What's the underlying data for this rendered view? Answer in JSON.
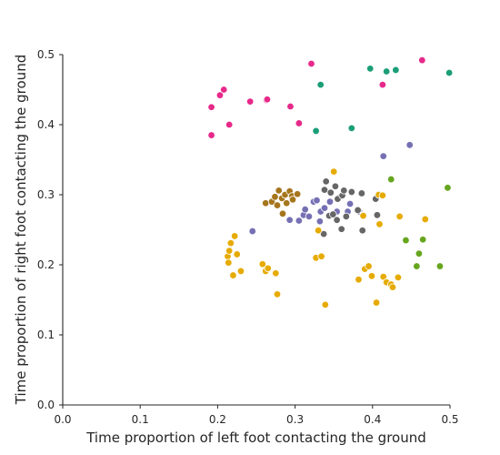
{
  "chart_data": {
    "type": "scatter",
    "title": "",
    "xlabel": "Time proportion of left foot contacting the ground",
    "ylabel": "Time proportion of right foot contacting the ground",
    "xlim": [
      0.0,
      0.5
    ],
    "ylim": [
      0.0,
      0.5
    ],
    "xticks": [
      0.0,
      0.1,
      0.2,
      0.3,
      0.4,
      0.5
    ],
    "yticks": [
      0.0,
      0.1,
      0.2,
      0.3,
      0.4,
      0.5
    ],
    "xtick_labels": [
      "0.0",
      "0.1",
      "0.2",
      "0.3",
      "0.4",
      "0.5"
    ],
    "ytick_labels": [
      "0.0",
      "0.1",
      "0.2",
      "0.3",
      "0.4",
      "0.5"
    ],
    "grid": false,
    "legend": "none",
    "series": [
      {
        "color": "#e7298a",
        "points": [
          [
            0.192,
            0.425
          ],
          [
            0.192,
            0.385
          ],
          [
            0.203,
            0.442
          ],
          [
            0.208,
            0.45
          ],
          [
            0.215,
            0.4
          ],
          [
            0.242,
            0.433
          ],
          [
            0.263,
            0.435
          ],
          [
            0.264,
            0.436
          ],
          [
            0.294,
            0.426
          ],
          [
            0.305,
            0.402
          ],
          [
            0.321,
            0.487
          ],
          [
            0.413,
            0.457
          ],
          [
            0.464,
            0.492
          ]
        ]
      },
      {
        "color": "#1b9e77",
        "points": [
          [
            0.327,
            0.391
          ],
          [
            0.333,
            0.457
          ],
          [
            0.373,
            0.395
          ],
          [
            0.397,
            0.48
          ],
          [
            0.418,
            0.476
          ],
          [
            0.43,
            0.478
          ],
          [
            0.499,
            0.474
          ]
        ]
      },
      {
        "color": "#66a61e",
        "points": [
          [
            0.424,
            0.322
          ],
          [
            0.443,
            0.235
          ],
          [
            0.457,
            0.198
          ],
          [
            0.46,
            0.216
          ],
          [
            0.465,
            0.236
          ],
          [
            0.487,
            0.198
          ],
          [
            0.497,
            0.31
          ]
        ]
      },
      {
        "color": "#7570b3",
        "points": [
          [
            0.245,
            0.248
          ],
          [
            0.293,
            0.264
          ],
          [
            0.305,
            0.263
          ],
          [
            0.311,
            0.271
          ],
          [
            0.313,
            0.279
          ],
          [
            0.318,
            0.269
          ],
          [
            0.324,
            0.29
          ],
          [
            0.328,
            0.292
          ],
          [
            0.332,
            0.262
          ],
          [
            0.333,
            0.276
          ],
          [
            0.338,
            0.281
          ],
          [
            0.345,
            0.29
          ],
          [
            0.354,
            0.276
          ],
          [
            0.357,
            0.296
          ],
          [
            0.368,
            0.276
          ],
          [
            0.371,
            0.287
          ],
          [
            0.383,
            0.276
          ],
          [
            0.388,
            0.271
          ],
          [
            0.414,
            0.355
          ],
          [
            0.448,
            0.371
          ]
        ]
      },
      {
        "color": "#a6761d",
        "points": [
          [
            0.262,
            0.288
          ],
          [
            0.27,
            0.29
          ],
          [
            0.274,
            0.297
          ],
          [
            0.277,
            0.285
          ],
          [
            0.279,
            0.306
          ],
          [
            0.283,
            0.295
          ],
          [
            0.284,
            0.273
          ],
          [
            0.287,
            0.3
          ],
          [
            0.289,
            0.288
          ],
          [
            0.293,
            0.305
          ],
          [
            0.296,
            0.298
          ],
          [
            0.297,
            0.293
          ],
          [
            0.303,
            0.301
          ]
        ]
      },
      {
        "color": "#666666",
        "points": [
          [
            0.337,
            0.244
          ],
          [
            0.338,
            0.307
          ],
          [
            0.34,
            0.319
          ],
          [
            0.344,
            0.27
          ],
          [
            0.346,
            0.303
          ],
          [
            0.349,
            0.272
          ],
          [
            0.352,
            0.312
          ],
          [
            0.354,
            0.264
          ],
          [
            0.355,
            0.294
          ],
          [
            0.36,
            0.251
          ],
          [
            0.361,
            0.299
          ],
          [
            0.363,
            0.306
          ],
          [
            0.366,
            0.269
          ],
          [
            0.373,
            0.304
          ],
          [
            0.381,
            0.278
          ],
          [
            0.386,
            0.302
          ],
          [
            0.387,
            0.249
          ],
          [
            0.404,
            0.294
          ],
          [
            0.406,
            0.271
          ]
        ]
      },
      {
        "color": "#e6ab02",
        "points": [
          [
            0.213,
            0.212
          ],
          [
            0.214,
            0.203
          ],
          [
            0.215,
            0.22
          ],
          [
            0.217,
            0.231
          ],
          [
            0.22,
            0.185
          ],
          [
            0.222,
            0.241
          ],
          [
            0.225,
            0.215
          ],
          [
            0.23,
            0.191
          ],
          [
            0.258,
            0.201
          ],
          [
            0.262,
            0.191
          ],
          [
            0.265,
            0.195
          ],
          [
            0.275,
            0.188
          ],
          [
            0.277,
            0.158
          ],
          [
            0.327,
            0.21
          ],
          [
            0.33,
            0.249
          ],
          [
            0.334,
            0.212
          ],
          [
            0.339,
            0.143
          ],
          [
            0.35,
            0.333
          ],
          [
            0.382,
            0.179
          ],
          [
            0.388,
            0.27
          ],
          [
            0.39,
            0.194
          ],
          [
            0.395,
            0.198
          ],
          [
            0.399,
            0.184
          ],
          [
            0.405,
            0.146
          ],
          [
            0.408,
            0.3
          ],
          [
            0.409,
            0.258
          ],
          [
            0.413,
            0.299
          ],
          [
            0.414,
            0.183
          ],
          [
            0.418,
            0.175
          ],
          [
            0.424,
            0.172
          ],
          [
            0.426,
            0.168
          ],
          [
            0.433,
            0.182
          ],
          [
            0.435,
            0.269
          ],
          [
            0.468,
            0.265
          ]
        ]
      }
    ]
  }
}
